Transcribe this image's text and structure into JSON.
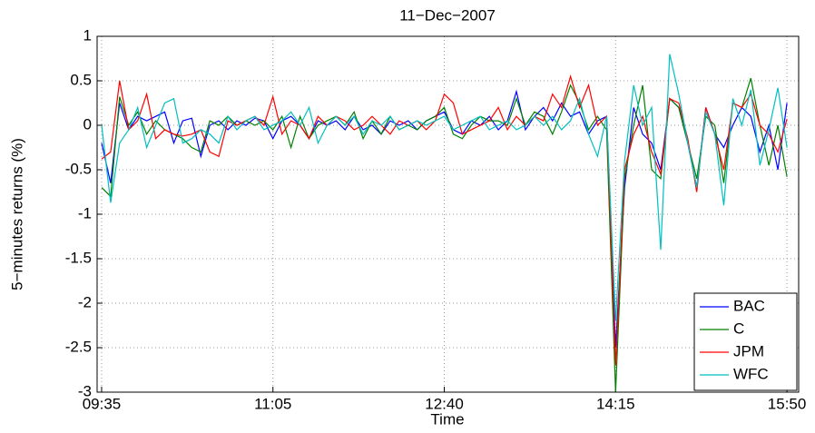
{
  "chart_data": {
    "type": "line",
    "title": "11−Dec−2007",
    "xlabel": "Time",
    "ylabel": "5−minutes returns (%)",
    "categories": [
      "09:35",
      null,
      null,
      null,
      null,
      null,
      null,
      null,
      null,
      null,
      null,
      null,
      null,
      null,
      null,
      null,
      null,
      null,
      null,
      "11:05",
      null,
      null,
      null,
      null,
      null,
      null,
      null,
      null,
      null,
      null,
      null,
      null,
      null,
      null,
      null,
      null,
      null,
      null,
      "12:40",
      null,
      null,
      null,
      null,
      null,
      null,
      null,
      null,
      null,
      null,
      null,
      null,
      null,
      null,
      null,
      null,
      null,
      null,
      "14:15",
      null,
      null,
      null,
      null,
      null,
      null,
      null,
      null,
      null,
      null,
      null,
      null,
      null,
      null,
      null,
      null,
      null,
      null,
      "15:50"
    ],
    "ylim": [
      -3,
      1
    ],
    "yticks": [
      -3,
      -2.5,
      -2,
      -1.5,
      -1,
      -0.5,
      0,
      0.5,
      1
    ],
    "grid": true,
    "legend": "lower right",
    "series": [
      {
        "name": "BAC",
        "color": "#0000ff",
        "values": [
          -0.2,
          -0.65,
          0.25,
          -0.05,
          0.1,
          0.05,
          0.1,
          0.15,
          -0.2,
          0.05,
          0.08,
          -0.35,
          0.0,
          0.05,
          -0.05,
          0.05,
          0.0,
          0.08,
          0.05,
          -0.15,
          0.05,
          0.1,
          0.0,
          -0.15,
          0.05,
          0.0,
          0.05,
          -0.05,
          0.1,
          -0.05,
          0.0,
          -0.1,
          0.05,
          0.0,
          0.05,
          -0.05,
          0.05,
          0.1,
          0.15,
          -0.05,
          -0.1,
          0.05,
          0.0,
          0.1,
          -0.05,
          0.05,
          0.38,
          -0.05,
          0.1,
          0.2,
          0.05,
          0.25,
          0.1,
          0.15,
          -0.1,
          0.05,
          0.1,
          -2.5,
          -0.7,
          0.2,
          -0.1,
          -0.2,
          -0.5,
          0.3,
          0.2,
          -0.2,
          -0.7,
          0.2,
          -0.1,
          -0.25,
          0.0,
          0.2,
          0.1,
          -0.3,
          0.0,
          -0.5,
          0.25
        ]
      },
      {
        "name": "C",
        "color": "#008000",
        "values": [
          -0.7,
          -0.8,
          0.32,
          0.0,
          0.15,
          -0.1,
          0.05,
          -0.05,
          -0.1,
          -0.15,
          -0.25,
          -0.3,
          0.05,
          0.0,
          0.1,
          0.0,
          0.05,
          0.0,
          0.05,
          -0.05,
          0.1,
          -0.25,
          0.1,
          -0.15,
          0.0,
          0.05,
          0.1,
          0.0,
          0.15,
          -0.15,
          0.05,
          -0.1,
          0.1,
          -0.05,
          0.0,
          -0.05,
          0.05,
          0.1,
          0.2,
          -0.1,
          -0.15,
          0.0,
          0.1,
          0.05,
          0.05,
          0.0,
          0.3,
          0.0,
          0.15,
          0.1,
          -0.1,
          0.15,
          0.45,
          0.25,
          -0.05,
          0.1,
          -0.05,
          -3.0,
          -0.6,
          0.0,
          0.45,
          -0.5,
          -0.6,
          0.3,
          0.2,
          -0.2,
          -0.6,
          0.1,
          0.0,
          -0.65,
          0.25,
          0.2,
          0.53,
          0.0,
          -0.45,
          0.0,
          -0.58
        ]
      },
      {
        "name": "JPM",
        "color": "#ff0000",
        "values": [
          -0.38,
          -0.3,
          0.5,
          -0.05,
          0.05,
          0.35,
          -0.15,
          -0.05,
          -0.1,
          -0.12,
          -0.1,
          -0.05,
          -0.3,
          -0.35,
          0.05,
          0.0,
          0.05,
          0.1,
          0.0,
          0.32,
          -0.1,
          0.05,
          0.0,
          -0.15,
          0.1,
          0.0,
          0.1,
          0.05,
          -0.05,
          0.0,
          0.1,
          0.0,
          -0.1,
          0.05,
          0.0,
          0.05,
          -0.05,
          0.05,
          0.35,
          0.25,
          -0.1,
          -0.05,
          0.0,
          0.05,
          0.2,
          -0.05,
          0.1,
          0.0,
          0.1,
          0.05,
          0.35,
          0.2,
          0.55,
          0.2,
          0.45,
          0.0,
          0.1,
          -2.7,
          -0.5,
          -0.1,
          0.1,
          -0.3,
          -0.55,
          0.3,
          0.25,
          -0.15,
          -0.75,
          0.2,
          -0.1,
          -0.5,
          0.25,
          0.2,
          0.35,
          0.0,
          -0.1,
          -0.3,
          0.07
        ]
      },
      {
        "name": "WFC",
        "color": "#00bfbf",
        "values": [
          0.0,
          -0.87,
          -0.2,
          -0.05,
          0.2,
          -0.25,
          0.0,
          0.25,
          0.3,
          -0.2,
          -0.15,
          -0.05,
          -0.1,
          -0.2,
          0.1,
          -0.05,
          0.05,
          0.1,
          -0.05,
          0.0,
          0.05,
          0.15,
          0.0,
          0.2,
          -0.2,
          0.0,
          0.1,
          0.0,
          0.1,
          -0.1,
          0.05,
          0.0,
          0.1,
          -0.05,
          0.0,
          0.05,
          0.0,
          0.05,
          0.1,
          -0.05,
          0.0,
          0.05,
          0.1,
          -0.05,
          0.0,
          0.05,
          -0.05,
          0.0,
          0.1,
          0.0,
          0.1,
          -0.05,
          0.05,
          0.3,
          -0.1,
          -0.35,
          0.1,
          -2.2,
          -0.4,
          0.45,
          0.0,
          0.2,
          -1.4,
          0.8,
          0.35,
          -0.2,
          -0.7,
          0.15,
          -0.1,
          -0.9,
          0.3,
          0.0,
          0.4,
          -0.45,
          -0.05,
          0.42,
          -0.25
        ]
      }
    ]
  }
}
